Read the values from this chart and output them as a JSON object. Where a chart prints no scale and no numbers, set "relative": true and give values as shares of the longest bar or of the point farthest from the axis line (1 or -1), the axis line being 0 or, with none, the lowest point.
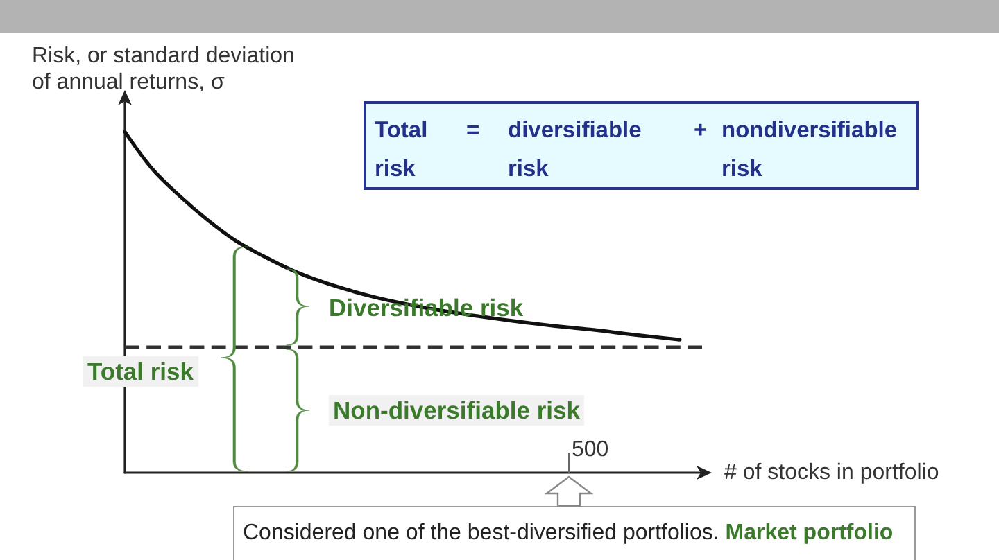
{
  "chart_data": {
    "type": "line",
    "relative": true,
    "ylabel": "Risk, or standard deviation of annual returns, σ",
    "xlabel": "# of stocks in portfolio",
    "categories": [
      null,
      null,
      null,
      null,
      null,
      null,
      null,
      null,
      null,
      null,
      null,
      null,
      null,
      null,
      null,
      null,
      null,
      null,
      null,
      null,
      null,
      null
    ],
    "series": [
      {
        "color": "#111111",
        "values": [
          1,
          0.89,
          0.81,
          0.74,
          0.68,
          0.635,
          0.595,
          0.563,
          0.537,
          0.515,
          0.497,
          0.481,
          0.468,
          0.456,
          0.445,
          0.435,
          0.426,
          0.418,
          0.408,
          0.399,
          0.39,
          null
        ]
      }
    ],
    "marker": "none",
    "line_style": "solid",
    "ref_lines": [
      {
        "axis": "y",
        "value": 0.37,
        "color": "#333333",
        "line_style": "dashed"
      }
    ],
    "annotations": [
      "Total risk",
      "=",
      "diversifiable risk",
      "+",
      "nondiversifiable risk",
      "Diversifiable risk",
      "Total risk",
      "Non-diversifiable risk",
      "Considered one of the best-diversified portfolios.",
      "Market portfolio",
      "500"
    ]
  }
}
